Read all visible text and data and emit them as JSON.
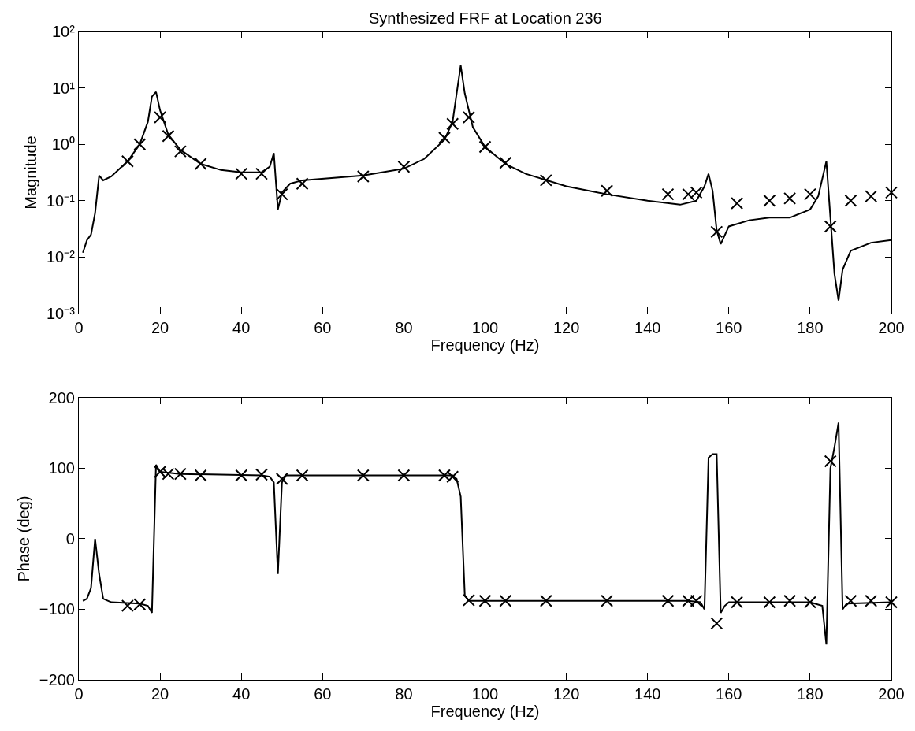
{
  "chart_data": [
    {
      "type": "line",
      "title": "Synthesized FRF at Location 236",
      "xlabel": "Frequency (Hz)",
      "ylabel": "Magnitude",
      "log": "y",
      "xlim": [
        0,
        200
      ],
      "xticks": [
        0,
        20,
        40,
        60,
        80,
        100,
        120,
        140,
        160,
        180,
        200
      ],
      "ylim": [
        0.001,
        100
      ],
      "yticks": [
        {
          "value": 0.001,
          "label": "10⁻³"
        },
        {
          "value": 0.01,
          "label": "10⁻²"
        },
        {
          "value": 0.1,
          "label": "10⁻¹"
        },
        {
          "value": 1,
          "label": "10⁰"
        },
        {
          "value": 10,
          "label": "10¹"
        },
        {
          "value": 100,
          "label": "10²"
        }
      ],
      "series": [
        {
          "color": "#000000",
          "marker": "none",
          "line_style": "solid",
          "x": [
            1,
            2,
            3,
            4,
            5,
            6,
            8,
            12,
            15,
            17,
            18,
            19,
            20,
            22,
            25,
            30,
            35,
            40,
            45,
            47,
            48,
            49,
            50,
            52,
            55,
            70,
            80,
            85,
            90,
            92,
            93,
            94,
            95,
            97,
            100,
            105,
            110,
            120,
            130,
            140,
            148,
            152,
            154,
            155,
            156,
            157,
            158,
            160,
            165,
            170,
            175,
            180,
            182,
            184,
            185,
            186,
            187,
            188,
            190,
            195,
            200
          ],
          "values": [
            0.012,
            0.02,
            0.025,
            0.06,
            0.28,
            0.23,
            0.27,
            0.5,
            1.0,
            2.5,
            7,
            8.5,
            4,
            1.5,
            0.8,
            0.45,
            0.35,
            0.32,
            0.32,
            0.4,
            0.7,
            0.07,
            0.14,
            0.2,
            0.23,
            0.28,
            0.37,
            0.55,
            1.2,
            2.5,
            8,
            25,
            8,
            2.0,
            0.9,
            0.45,
            0.3,
            0.18,
            0.13,
            0.1,
            0.085,
            0.1,
            0.18,
            0.3,
            0.15,
            0.03,
            0.017,
            0.035,
            0.045,
            0.05,
            0.05,
            0.07,
            0.12,
            0.5,
            0.05,
            0.005,
            0.0017,
            0.006,
            0.013,
            0.018,
            0.02
          ]
        },
        {
          "type": "scatter",
          "color": "#000000",
          "marker": "cross",
          "x": [
            12,
            15,
            20,
            22,
            25,
            30,
            40,
            45,
            50,
            55,
            70,
            80,
            90,
            92,
            96,
            100,
            105,
            115,
            130,
            145,
            150,
            152,
            157,
            162,
            170,
            175,
            180,
            185,
            190,
            195,
            200
          ],
          "values": [
            0.5,
            1.0,
            3.0,
            1.4,
            0.75,
            0.45,
            0.3,
            0.3,
            0.13,
            0.2,
            0.27,
            0.4,
            1.3,
            2.3,
            3.0,
            0.9,
            0.47,
            0.23,
            0.15,
            0.13,
            0.13,
            0.14,
            0.028,
            0.09,
            0.1,
            0.11,
            0.13,
            0.035,
            0.1,
            0.12,
            0.14
          ]
        }
      ]
    },
    {
      "type": "line",
      "xlabel": "Frequency (Hz)",
      "ylabel": "Phase (deg)",
      "xlim": [
        0,
        200
      ],
      "xticks": [
        0,
        20,
        40,
        60,
        80,
        100,
        120,
        140,
        160,
        180,
        200
      ],
      "ylim": [
        -200,
        200
      ],
      "yticks": [
        {
          "value": -200,
          "label": "−200"
        },
        {
          "value": -100,
          "label": "−100"
        },
        0,
        100,
        200
      ],
      "series": [
        {
          "color": "#000000",
          "marker": "none",
          "line_style": "solid",
          "x": [
            1,
            2,
            3,
            4,
            5,
            6,
            8,
            15,
            17,
            18,
            19,
            20,
            25,
            45,
            47,
            48,
            49,
            50,
            51,
            92,
            93,
            94,
            95,
            96,
            150,
            153,
            154,
            155,
            156,
            157,
            158,
            159,
            160,
            180,
            183,
            184,
            185,
            186,
            187,
            188,
            189,
            200
          ],
          "values": [
            -88,
            -85,
            -70,
            0,
            -50,
            -85,
            -90,
            -92,
            -95,
            -105,
            105,
            95,
            92,
            90,
            88,
            80,
            -50,
            80,
            90,
            90,
            85,
            60,
            -80,
            -88,
            -88,
            -90,
            -100,
            115,
            120,
            120,
            -105,
            -95,
            -90,
            -90,
            -95,
            -150,
            100,
            130,
            165,
            -100,
            -92,
            -90
          ]
        },
        {
          "type": "scatter",
          "color": "#000000",
          "marker": "cross",
          "x": [
            12,
            15,
            20,
            22,
            25,
            30,
            40,
            45,
            50,
            55,
            70,
            80,
            90,
            92,
            96,
            100,
            105,
            115,
            130,
            145,
            150,
            152,
            157,
            162,
            170,
            175,
            180,
            185,
            190,
            195,
            200
          ],
          "values": [
            -95,
            -93,
            95,
            92,
            92,
            90,
            90,
            91,
            85,
            90,
            90,
            90,
            90,
            88,
            -87,
            -88,
            -88,
            -88,
            -88,
            -88,
            -88,
            -88,
            -120,
            -90,
            -90,
            -88,
            -90,
            110,
            -88,
            -88,
            -90
          ]
        }
      ]
    }
  ]
}
